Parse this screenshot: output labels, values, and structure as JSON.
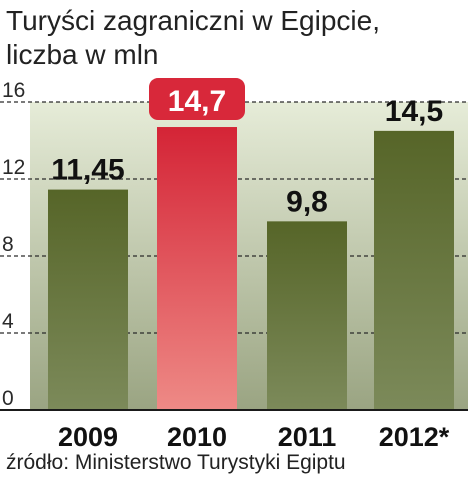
{
  "chart_data": {
    "type": "bar",
    "title_lines": [
      "Turyści zagraniczni w Egipcie,",
      "liczba w mln"
    ],
    "categories": [
      "2009",
      "2010",
      "2011",
      "2012*"
    ],
    "values": [
      11.45,
      14.7,
      9.8,
      14.5
    ],
    "value_labels": [
      "11,45",
      "14,7",
      "9,8",
      "14,5"
    ],
    "y_ticks": [
      0,
      4,
      8,
      12,
      16
    ],
    "ylim": [
      0,
      16
    ],
    "grid": true,
    "highlight_index": 1,
    "colors": {
      "bar": "#5a6a2a",
      "highlight_bar": "#d8283a",
      "highlight_label_bg": "#d8283a",
      "plot_bg_top": "#e6ecd8",
      "plot_bg_bottom": "#9aa482"
    },
    "source": "źródło: Ministerstwo Turystyki Egiptu"
  }
}
